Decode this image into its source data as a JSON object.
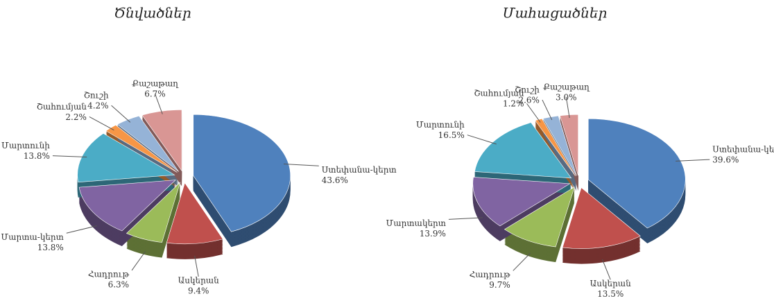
{
  "chart_data": [
    {
      "type": "pie",
      "title": "Ծնվածներ",
      "categories": [
        "Ստեփանա-կերտ",
        "Ասկերան",
        "Հադրութ",
        "Մարտա-կերտ",
        "Մարտունի",
        "Շահումյան",
        "Շուշի",
        "Քաշաթաղ"
      ],
      "values": [
        43.6,
        9.4,
        6.3,
        13.8,
        13.8,
        2.2,
        4.2,
        6.7
      ],
      "value_labels": [
        "43.6%",
        "9.4%",
        "6.3%",
        "13.8%",
        "13.8%",
        "2.2%",
        "4.2%",
        "6.7%"
      ],
      "colors": [
        "#4f81bd",
        "#c0504d",
        "#9bbb59",
        "#8064a2",
        "#4bacc6",
        "#f79646",
        "#95b3d7",
        "#d99694"
      ]
    },
    {
      "type": "pie",
      "title": "Մահացածներ",
      "categories": [
        "Ստեփանա-կերտ",
        "Ասկերան",
        "Հադրութ",
        "Մարտակերտ",
        "Մարտունի",
        "Շահումյան",
        "Շուշի",
        "Քաշաթաղ"
      ],
      "values": [
        39.6,
        13.5,
        9.7,
        13.9,
        16.5,
        1.2,
        2.6,
        3.0
      ],
      "value_labels": [
        "39.6%",
        "13.5%",
        "9.7%",
        "13.9%",
        "16.5%",
        "1.2%",
        "2.6%",
        "3.0%"
      ],
      "colors": [
        "#4f81bd",
        "#c0504d",
        "#9bbb59",
        "#8064a2",
        "#4bacc6",
        "#f79646",
        "#95b3d7",
        "#d99694"
      ]
    }
  ]
}
